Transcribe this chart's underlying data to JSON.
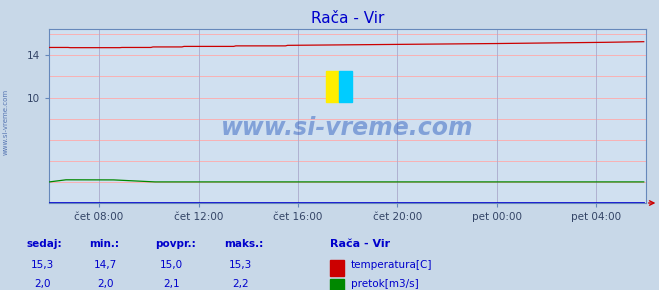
{
  "title": "Rača - Vir",
  "title_color": "#0000cc",
  "bg_color": "#c8d8e8",
  "plot_bg_color": "#d0e0f0",
  "grid_color_h": "#ffaaaa",
  "grid_color_v": "#aaaacc",
  "spine_color": "#6688bb",
  "x_min": 0,
  "x_max": 288,
  "y_min": 0,
  "y_max": 16.5,
  "ytick_positions": [
    10,
    14
  ],
  "ytick_labels": [
    "10",
    "14"
  ],
  "xtick_positions": [
    24,
    72,
    120,
    168,
    216,
    264
  ],
  "xtick_labels": [
    "čet 08:00",
    "čet 12:00",
    "čet 16:00",
    "čet 20:00",
    "pet 00:00",
    "pet 04:00"
  ],
  "temp_color": "#cc0000",
  "flow_color": "#008800",
  "blue_color": "#0000cc",
  "watermark": "www.si-vreme.com",
  "watermark_color": "#2255bb",
  "watermark_alpha": 0.45,
  "left_label": "www.si-vreme.com",
  "left_label_color": "#4466aa",
  "legend_title": "Rača - Vir",
  "legend_title_color": "#0000cc",
  "legend_color": "#0000cc",
  "footer_label_color": "#0000cc",
  "footer_value_color": "#0000cc",
  "footer_headers": [
    "sedaj:",
    "min.:",
    "povpr.:",
    "maks.:"
  ],
  "footer_temp": [
    "15,3",
    "14,7",
    "15,0",
    "15,3"
  ],
  "footer_flow": [
    "2,0",
    "2,0",
    "2,1",
    "2,2"
  ],
  "temp_label": "temperatura[C]",
  "flow_label": "pretok[m3/s]",
  "tick_color": "#334466",
  "tick_fontsize": 7.5,
  "title_fontsize": 11
}
